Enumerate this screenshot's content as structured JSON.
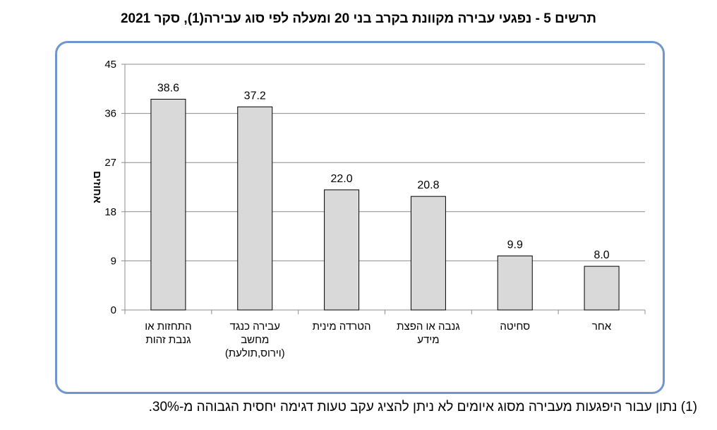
{
  "title": "תרשים 5 - נפגעי עבירה מקוונת בקרב בני 20 ומעלה לפי סוג עבירה(1), סקר 2021",
  "footnote": "(1) נתון עבור היפגעות מעבירה מסוג איומים לא ניתן להציג עקב טעות דגימה יחסית הגבוהה מ-30%.",
  "chart_data": {
    "type": "bar",
    "title": "תרשים 5 - נפגעי עבירה מקוונת בקרב בני 20 ומעלה לפי סוג עבירה(1), סקר 2021",
    "xlabel": "",
    "ylabel": "אחוזים",
    "ylim": [
      0,
      45
    ],
    "yticks": [
      0,
      9,
      18,
      27,
      36,
      45
    ],
    "grid": true,
    "categories": [
      [
        "התחזות או",
        "גנבת זהות"
      ],
      [
        "עבירה כנגד",
        "מחשב",
        "(וירוס,תולעת)"
      ],
      [
        "הטרדה מינית"
      ],
      [
        "גנבה או הפצת",
        "מידע"
      ],
      [
        "סחיטה"
      ],
      [
        "אחר"
      ]
    ],
    "values": [
      38.6,
      37.2,
      22.0,
      20.8,
      9.9,
      8.0
    ],
    "value_labels": [
      "38.6",
      "37.2",
      "22.0",
      "20.8",
      "9.9",
      "8.0"
    ],
    "colors": {
      "bar_fill": "#d9d9d9",
      "bar_stroke": "#000000",
      "grid": "#8c8c8c",
      "frame": "#6f96cf"
    }
  }
}
